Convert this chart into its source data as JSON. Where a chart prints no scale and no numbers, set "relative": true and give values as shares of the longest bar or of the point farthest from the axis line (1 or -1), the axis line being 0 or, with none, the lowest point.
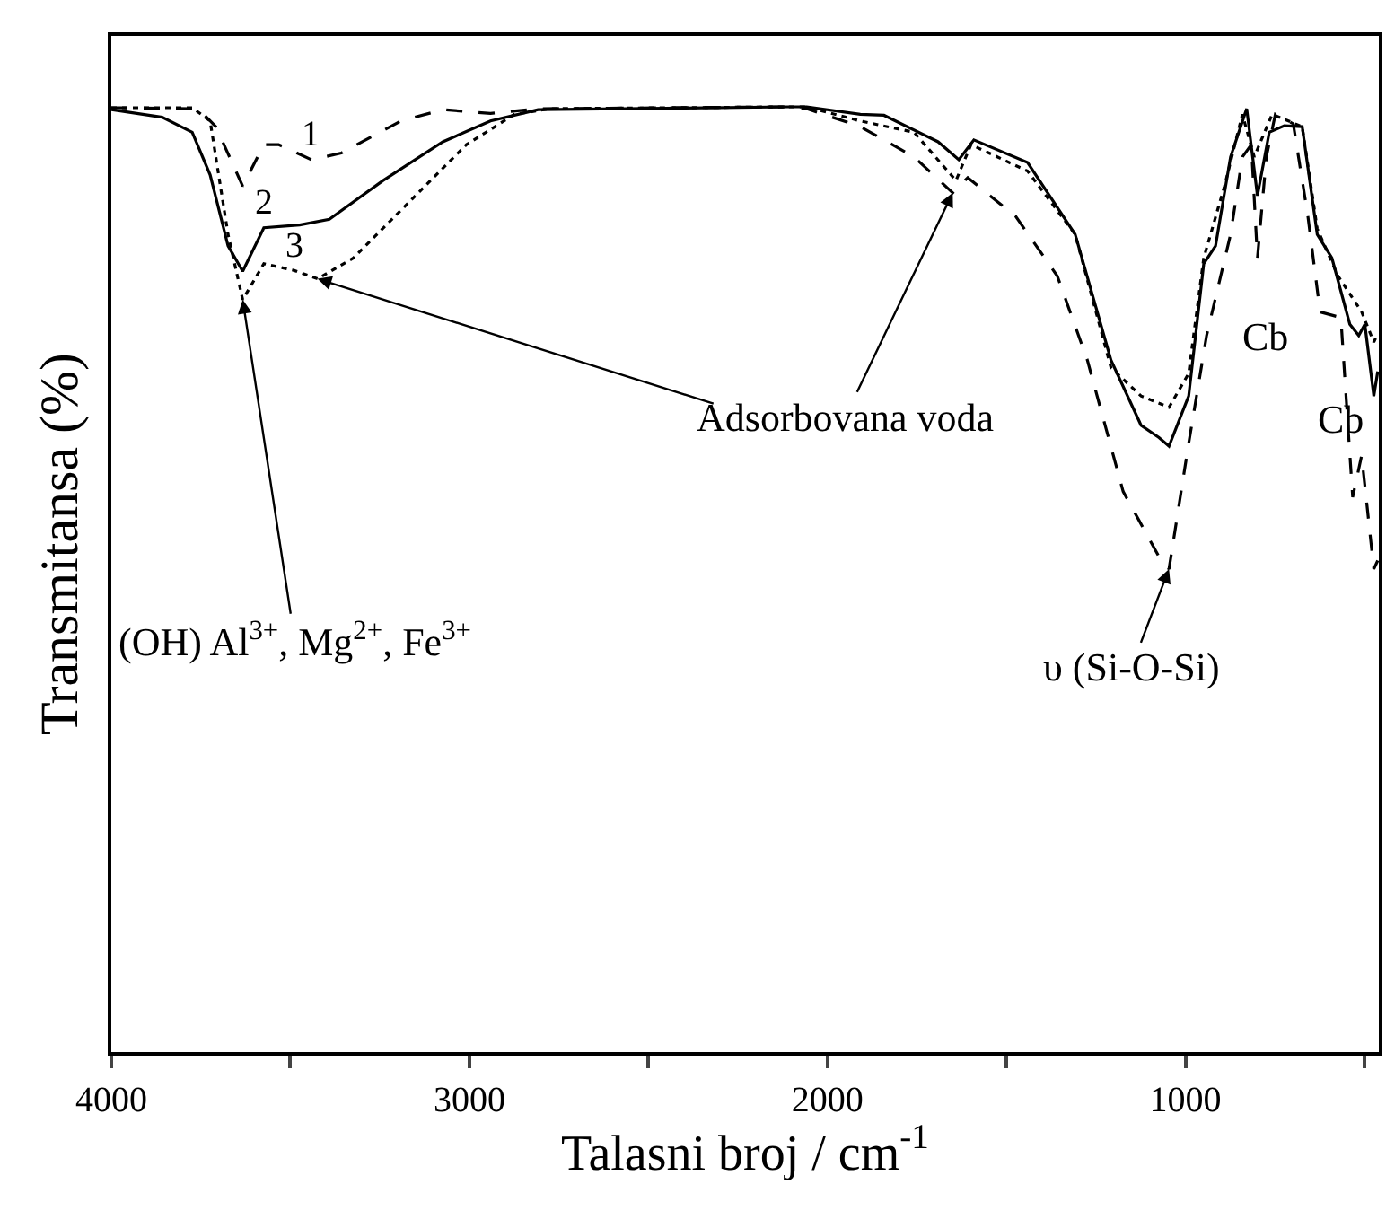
{
  "chart_data": {
    "type": "line",
    "relative": true,
    "xlabel": "Talasni broj / cm$^{-1}$",
    "ylabel": "Transmitansa (%)",
    "xlim": [
      4000,
      460
    ],
    "xticks": [
      4000,
      {
        "value": 3500,
        "label": null
      },
      3000,
      {
        "value": 2500,
        "label": null
      },
      2000,
      {
        "value": 1500,
        "label": null
      },
      1000,
      {
        "value": 500,
        "label": null
      }
    ],
    "tick_labels": "x",
    "legend": false,
    "marker": "none",
    "series": [
      {
        "name": "1",
        "color": "#000000",
        "line_style": "dashed",
        "x": [
          4000,
          3758,
          3708,
          3633,
          3574,
          3533,
          3441,
          3358,
          3191,
          3074,
          2941,
          2808,
          2108,
          2058,
          1908,
          1758,
          1650,
          1608,
          1474,
          1358,
          1274,
          1174,
          1074,
          1046,
          991,
          941,
          874,
          841,
          816,
          799,
          774,
          749,
          699,
          658,
          624,
          566,
          533,
          508,
          474,
          463
        ],
        "values": [
          0.999,
          0.998,
          0.979,
          0.916,
          0.96,
          0.96,
          0.944,
          0.951,
          0.985,
          0.997,
          0.993,
          0.998,
          1,
          0.998,
          0.979,
          0.947,
          0.909,
          0.925,
          0.884,
          0.821,
          0.732,
          0.593,
          0.524,
          0.511,
          0.644,
          0.758,
          0.865,
          0.947,
          0.96,
          0.84,
          0.947,
          0.992,
          0.982,
          0.884,
          0.783,
          0.777,
          0.587,
          0.631,
          0.511,
          0.52
        ]
      },
      {
        "name": "2",
        "color": "#000000",
        "line_style": "solid",
        "x": [
          4000,
          3858,
          3774,
          3724,
          3674,
          3633,
          3574,
          3474,
          3391,
          3241,
          3074,
          2941,
          2808,
          2108,
          2058,
          1908,
          1842,
          1691,
          1633,
          1591,
          1441,
          1308,
          1208,
          1124,
          1074,
          1046,
          991,
          949,
          916,
          874,
          829,
          799,
          766,
          724,
          674,
          632,
          591,
          541,
          516,
          499,
          474,
          463
        ],
        "values": [
          0.997,
          0.989,
          0.973,
          0.928,
          0.853,
          0.826,
          0.872,
          0.875,
          0.881,
          0.922,
          0.963,
          0.985,
          0.997,
          1,
          1,
          0.992,
          0.991,
          0.963,
          0.944,
          0.965,
          0.941,
          0.865,
          0.732,
          0.663,
          0.65,
          0.641,
          0.694,
          0.834,
          0.853,
          0.947,
          0.998,
          0.906,
          0.973,
          0.98,
          0.979,
          0.865,
          0.84,
          0.77,
          0.758,
          0.77,
          0.694,
          0.72
        ]
      },
      {
        "name": "3",
        "color": "#000000",
        "line_style": "dotted",
        "x": [
          4000,
          3774,
          3724,
          3674,
          3633,
          3574,
          3491,
          3424,
          3324,
          3174,
          3008,
          2874,
          2774,
          2108,
          2058,
          1908,
          1758,
          1641,
          1599,
          1441,
          1308,
          1208,
          1124,
          1046,
          991,
          949,
          891,
          841,
          808,
          758,
          674,
          632,
          574,
          508,
          474,
          463
        ],
        "values": [
          0.999,
          0.999,
          0.985,
          0.865,
          0.796,
          0.834,
          0.827,
          0.818,
          0.84,
          0.897,
          0.96,
          0.992,
          0.998,
          1,
          1,
          0.985,
          0.973,
          0.922,
          0.96,
          0.932,
          0.865,
          0.724,
          0.694,
          0.682,
          0.718,
          0.84,
          0.916,
          0.992,
          0.947,
          0.992,
          0.979,
          0.871,
          0.821,
          0.783,
          0.751,
          0.76
        ]
      }
    ],
    "annotations": [
      {
        "text": "(OH) Al$^{3+}$, Mg$^{2+}$, Fe$^{3+}$",
        "x": 3633,
        "y": 0.796
      },
      {
        "text": "Adsorbovana voda",
        "x": 1650,
        "y": 0.909
      },
      {
        "text": "υ (Si-O-Si)",
        "x": 1046,
        "y": 0.511
      },
      {
        "text": "Cb",
        "x": 799,
        "y": 0.84
      },
      {
        "text": "Cb",
        "x": 624,
        "y": 0.783
      }
    ]
  }
}
